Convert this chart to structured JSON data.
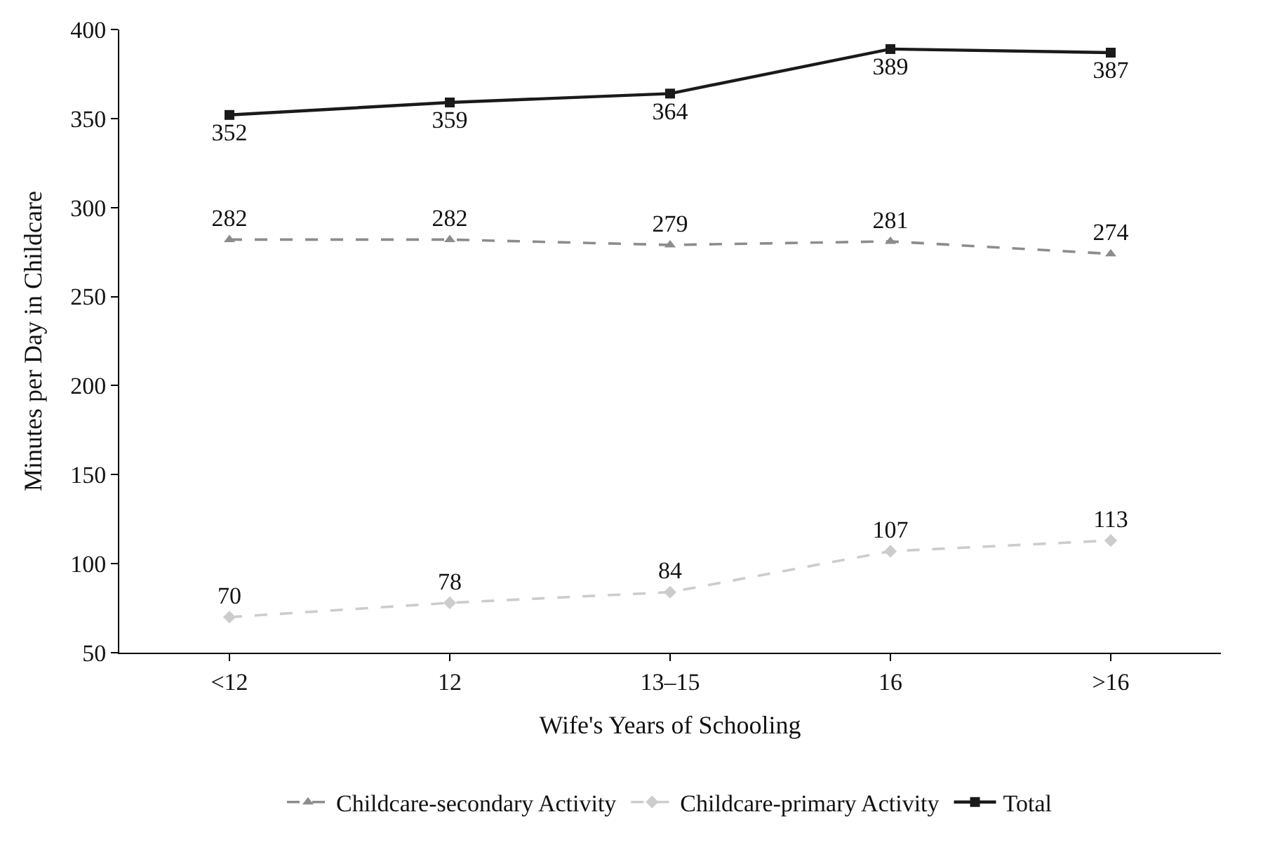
{
  "chart_data": {
    "type": "line",
    "xlabel": "Wife's Years of Schooling",
    "ylabel": "Minutes per Day in Childcare",
    "categories": [
      "<12",
      "12",
      "13–15",
      "16",
      ">16"
    ],
    "series": [
      {
        "name": "Childcare-secondary Activity",
        "color": "#8c8c8c",
        "values": [
          282,
          282,
          279,
          281,
          274
        ],
        "marker": "triangle",
        "line_style": "dashed"
      },
      {
        "name": "Childcare-primary Activity",
        "color": "#cccccc",
        "values": [
          70,
          78,
          84,
          107,
          113
        ],
        "marker": "diamond",
        "line_style": "dashed"
      },
      {
        "name": "Total",
        "color": "#1a1a1a",
        "values": [
          352,
          359,
          364,
          389,
          387
        ],
        "marker": "square",
        "line_style": "solid"
      }
    ],
    "ylim": [
      50,
      400
    ],
    "yticks": [
      50,
      100,
      150,
      200,
      250,
      300,
      350,
      400
    ],
    "data_labels": true,
    "legend": "bottom",
    "grid": false
  }
}
